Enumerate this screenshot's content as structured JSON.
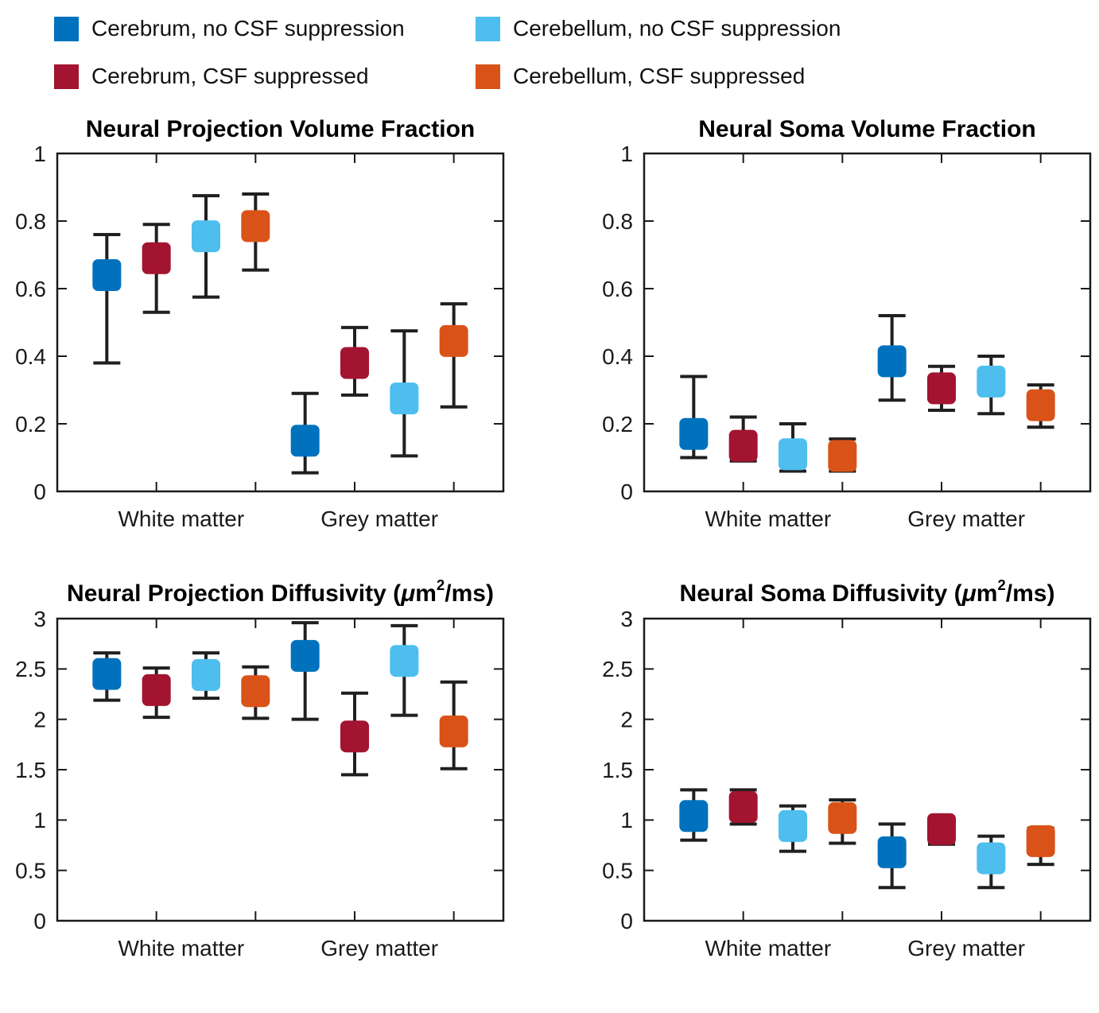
{
  "figure": {
    "background": "#ffffff"
  },
  "legend": {
    "items": [
      {
        "label": "Cerebrum, no CSF suppression",
        "color": "#0072BD",
        "icon": "swatch-square"
      },
      {
        "label": "Cerebrum, CSF suppressed",
        "color": "#A2142F",
        "icon": "swatch-square"
      },
      {
        "label": "Cerebellum, no CSF suppression",
        "color": "#4DBEEE",
        "icon": "swatch-square"
      },
      {
        "label": "Cerebellum, CSF suppressed",
        "color": "#D95319",
        "icon": "swatch-square"
      }
    ]
  },
  "style": {
    "axis_color": "#1a1a1a",
    "errorbar_color": "#1f1f1f",
    "tick_label_color": "#1a1a1a",
    "title_color": "#000000"
  },
  "chart_data": [
    {
      "type": "errorbar",
      "title": "Neural Projection Volume Fraction",
      "title_parts": [
        "Neural Projection Volume Fraction"
      ],
      "xlabel": "",
      "ylabel": "",
      "ylim": [
        0,
        1
      ],
      "yticks": [
        0,
        0.2,
        0.4,
        0.6,
        0.8,
        1
      ],
      "ytick_labels": [
        "0",
        "0.2",
        "0.4",
        "0.6",
        "0.8",
        "1"
      ],
      "categories": [
        "White matter",
        "Grey matter"
      ],
      "grid": false,
      "legend_position": "top-outside",
      "series": [
        {
          "name": "Cerebrum, no CSF suppression",
          "color": "#0072BD",
          "points": [
            {
              "category": "White matter",
              "value": 0.64,
              "lo": 0.38,
              "hi": 0.76
            },
            {
              "category": "Grey matter",
              "value": 0.15,
              "lo": 0.055,
              "hi": 0.29
            }
          ]
        },
        {
          "name": "Cerebrum, CSF suppressed",
          "color": "#A2142F",
          "points": [
            {
              "category": "White matter",
              "value": 0.69,
              "lo": 0.53,
              "hi": 0.79
            },
            {
              "category": "Grey matter",
              "value": 0.38,
              "lo": 0.285,
              "hi": 0.485
            }
          ]
        },
        {
          "name": "Cerebellum, no CSF suppression",
          "color": "#4DBEEE",
          "points": [
            {
              "category": "White matter",
              "value": 0.755,
              "lo": 0.575,
              "hi": 0.875
            },
            {
              "category": "Grey matter",
              "value": 0.275,
              "lo": 0.105,
              "hi": 0.475
            }
          ]
        },
        {
          "name": "Cerebellum, CSF suppressed",
          "color": "#D95319",
          "points": [
            {
              "category": "White matter",
              "value": 0.785,
              "lo": 0.655,
              "hi": 0.88
            },
            {
              "category": "Grey matter",
              "value": 0.445,
              "lo": 0.25,
              "hi": 0.555
            }
          ]
        }
      ]
    },
    {
      "type": "errorbar",
      "title": "Neural Soma Volume Fraction",
      "title_parts": [
        "Neural Soma Volume Fraction"
      ],
      "xlabel": "",
      "ylabel": "",
      "ylim": [
        0,
        1
      ],
      "yticks": [
        0,
        0.2,
        0.4,
        0.6,
        0.8,
        1
      ],
      "ytick_labels": [
        "0",
        "0.2",
        "0.4",
        "0.6",
        "0.8",
        "1"
      ],
      "categories": [
        "White matter",
        "Grey matter"
      ],
      "grid": false,
      "legend_position": "top-outside",
      "series": [
        {
          "name": "Cerebrum, no CSF suppression",
          "color": "#0072BD",
          "points": [
            {
              "category": "White matter",
              "value": 0.17,
              "lo": 0.1,
              "hi": 0.34
            },
            {
              "category": "Grey matter",
              "value": 0.385,
              "lo": 0.27,
              "hi": 0.52
            }
          ]
        },
        {
          "name": "Cerebrum, CSF suppressed",
          "color": "#A2142F",
          "points": [
            {
              "category": "White matter",
              "value": 0.135,
              "lo": 0.09,
              "hi": 0.22
            },
            {
              "category": "Grey matter",
              "value": 0.305,
              "lo": 0.24,
              "hi": 0.37
            }
          ]
        },
        {
          "name": "Cerebellum, no CSF suppression",
          "color": "#4DBEEE",
          "points": [
            {
              "category": "White matter",
              "value": 0.11,
              "lo": 0.06,
              "hi": 0.2
            },
            {
              "category": "Grey matter",
              "value": 0.325,
              "lo": 0.23,
              "hi": 0.4
            }
          ]
        },
        {
          "name": "Cerebellum, CSF suppressed",
          "color": "#D95319",
          "points": [
            {
              "category": "White matter",
              "value": 0.105,
              "lo": 0.06,
              "hi": 0.155
            },
            {
              "category": "Grey matter",
              "value": 0.255,
              "lo": 0.19,
              "hi": 0.315
            }
          ]
        }
      ]
    },
    {
      "type": "errorbar",
      "title": "Neural Projection Diffusivity (μm²/ms)",
      "title_parts": [
        "Neural Projection Diffusivity (",
        {
          "italic": "μ"
        },
        "m",
        {
          "sup": "2"
        },
        "/ms)"
      ],
      "xlabel": "",
      "ylabel": "",
      "ylim": [
        0,
        3
      ],
      "yticks": [
        0,
        0.5,
        1,
        1.5,
        2,
        2.5,
        3
      ],
      "ytick_labels": [
        "0",
        "0.5",
        "1",
        "1.5",
        "2",
        "2.5",
        "3"
      ],
      "categories": [
        "White matter",
        "Grey matter"
      ],
      "grid": false,
      "legend_position": "top-outside",
      "series": [
        {
          "name": "Cerebrum, no CSF suppression",
          "color": "#0072BD",
          "points": [
            {
              "category": "White matter",
              "value": 2.45,
              "lo": 2.19,
              "hi": 2.66
            },
            {
              "category": "Grey matter",
              "value": 2.63,
              "lo": 2.0,
              "hi": 2.96
            }
          ]
        },
        {
          "name": "Cerebrum, CSF suppressed",
          "color": "#A2142F",
          "points": [
            {
              "category": "White matter",
              "value": 2.29,
              "lo": 2.02,
              "hi": 2.51
            },
            {
              "category": "Grey matter",
              "value": 1.83,
              "lo": 1.45,
              "hi": 2.26
            }
          ]
        },
        {
          "name": "Cerebellum, no CSF suppression",
          "color": "#4DBEEE",
          "points": [
            {
              "category": "White matter",
              "value": 2.44,
              "lo": 2.21,
              "hi": 2.66
            },
            {
              "category": "Grey matter",
              "value": 2.58,
              "lo": 2.04,
              "hi": 2.93
            }
          ]
        },
        {
          "name": "Cerebellum, CSF suppressed",
          "color": "#D95319",
          "points": [
            {
              "category": "White matter",
              "value": 2.28,
              "lo": 2.01,
              "hi": 2.52
            },
            {
              "category": "Grey matter",
              "value": 1.88,
              "lo": 1.51,
              "hi": 2.37
            }
          ]
        }
      ]
    },
    {
      "type": "errorbar",
      "title": "Neural Soma Diffusivity (μm²/ms)",
      "title_parts": [
        "Neural Soma Diffusivity (",
        {
          "italic": "μ"
        },
        "m",
        {
          "sup": "2"
        },
        "/ms)"
      ],
      "xlabel": "",
      "ylabel": "",
      "ylim": [
        0,
        3
      ],
      "yticks": [
        0,
        0.5,
        1,
        1.5,
        2,
        2.5,
        3
      ],
      "ytick_labels": [
        "0",
        "0.5",
        "1",
        "1.5",
        "2",
        "2.5",
        "3"
      ],
      "categories": [
        "White matter",
        "Grey matter"
      ],
      "grid": false,
      "legend_position": "top-outside",
      "series": [
        {
          "name": "Cerebrum, no CSF suppression",
          "color": "#0072BD",
          "points": [
            {
              "category": "White matter",
              "value": 1.04,
              "lo": 0.8,
              "hi": 1.3
            },
            {
              "category": "Grey matter",
              "value": 0.68,
              "lo": 0.33,
              "hi": 0.96
            }
          ]
        },
        {
          "name": "Cerebrum, CSF suppressed",
          "color": "#A2142F",
          "points": [
            {
              "category": "White matter",
              "value": 1.13,
              "lo": 0.96,
              "hi": 1.3
            },
            {
              "category": "Grey matter",
              "value": 0.91,
              "lo": 0.76,
              "hi": 1.0
            }
          ]
        },
        {
          "name": "Cerebellum, no CSF suppression",
          "color": "#4DBEEE",
          "points": [
            {
              "category": "White matter",
              "value": 0.94,
              "lo": 0.69,
              "hi": 1.14
            },
            {
              "category": "Grey matter",
              "value": 0.62,
              "lo": 0.33,
              "hi": 0.84
            }
          ]
        },
        {
          "name": "Cerebellum, CSF suppressed",
          "color": "#D95319",
          "points": [
            {
              "category": "White matter",
              "value": 1.02,
              "lo": 0.77,
              "hi": 1.2
            },
            {
              "category": "Grey matter",
              "value": 0.79,
              "lo": 0.56,
              "hi": 0.92
            }
          ]
        }
      ]
    }
  ]
}
